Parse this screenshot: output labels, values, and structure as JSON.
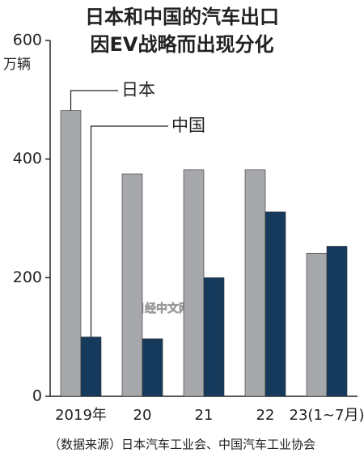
{
  "chart_data": {
    "type": "bar",
    "title": [
      "日本和中国的汽车出口",
      "因EV战略而出现分化"
    ],
    "y_label": "万辆",
    "categories": [
      "2019年",
      "20",
      "21",
      "22",
      "23(1~7月)"
    ],
    "series": [
      {
        "name": "日本",
        "color": "#a7a8ab",
        "values": [
          482,
          375,
          382,
          382,
          241
        ]
      },
      {
        "name": "中国",
        "color": "#163a5c",
        "values": [
          100,
          97,
          200,
          311,
          253
        ]
      }
    ],
    "ylim": [
      0,
      600
    ],
    "yticks": [
      0,
      200,
      400,
      600
    ],
    "source": "（数据来源）日本汽车工业会、中国汽车工业协会",
    "watermark": "日经中文网"
  }
}
